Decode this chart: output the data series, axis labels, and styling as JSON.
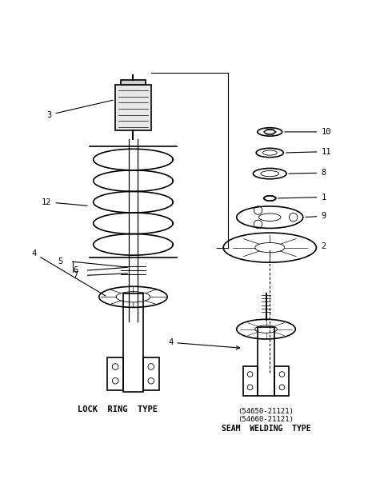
{
  "bg_color": "#ffffff",
  "line_color": "#000000",
  "lock_ring_label": "LOCK  RING  TYPE",
  "seam_weld_label": "SEAM  WELDING  TYPE",
  "seam_part1": "(54650-21121)",
  "seam_part2": "(54660-21121)",
  "lw_thin": 0.8,
  "lw_med": 1.2,
  "fs": 7.5
}
